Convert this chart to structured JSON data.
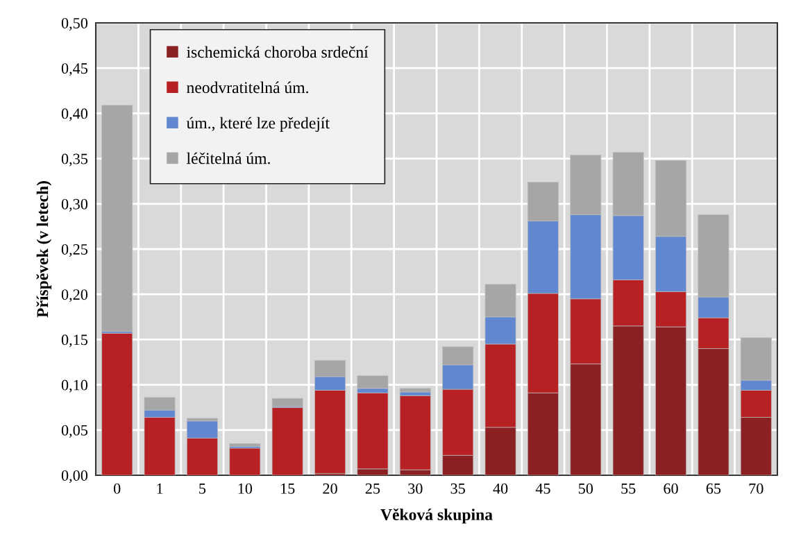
{
  "chart_data": {
    "type": "bar",
    "stacked": true,
    "xlabel": "Věková skupina",
    "ylabel": "Příspěvek (v letech)",
    "categories": [
      "0",
      "1",
      "5",
      "10",
      "15",
      "20",
      "25",
      "30",
      "35",
      "40",
      "45",
      "50",
      "55",
      "60",
      "65",
      "70"
    ],
    "series": [
      {
        "name": "ischemická choroba srdeční",
        "color": "#8b2023",
        "values": [
          0,
          0,
          0,
          0,
          0,
          0.002,
          0.007,
          0.006,
          0.022,
          0.053,
          0.091,
          0.123,
          0.165,
          0.164,
          0.14,
          0.064
        ]
      },
      {
        "name": "neodvratitelná úm.",
        "color": "#b82124",
        "values": [
          0.157,
          0.064,
          0.041,
          0.03,
          0.075,
          0.092,
          0.084,
          0.082,
          0.073,
          0.092,
          0.11,
          0.072,
          0.051,
          0.039,
          0.034,
          0.03
        ]
      },
      {
        "name": "úm., které lze předejít",
        "color": "#6087cf",
        "values": [
          0.002,
          0.008,
          0.019,
          0.002,
          0.001,
          0.015,
          0.005,
          0.004,
          0.027,
          0.03,
          0.08,
          0.093,
          0.071,
          0.061,
          0.023,
          0.011
        ]
      },
      {
        "name": "léčitelná úm.",
        "color": "#a6a6a6",
        "values": [
          0.25,
          0.014,
          0.003,
          0.003,
          0.009,
          0.018,
          0.014,
          0.004,
          0.02,
          0.036,
          0.043,
          0.066,
          0.07,
          0.084,
          0.091,
          0.047
        ]
      }
    ],
    "ylim": [
      0,
      0.5
    ],
    "yticks": [
      {
        "value": 0,
        "label": "0,00"
      },
      {
        "value": 0.05,
        "label": "0,05"
      },
      {
        "value": 0.1,
        "label": "0,10"
      },
      {
        "value": 0.15,
        "label": "0,15"
      },
      {
        "value": 0.2,
        "label": "0,20"
      },
      {
        "value": 0.25,
        "label": "0,25"
      },
      {
        "value": 0.3,
        "label": "0,30"
      },
      {
        "value": 0.35,
        "label": "0,35"
      },
      {
        "value": 0.4,
        "label": "0,40"
      },
      {
        "value": 0.45,
        "label": "0,45"
      },
      {
        "value": 0.5,
        "label": "0,50"
      }
    ],
    "grid": true,
    "legend": "top left"
  }
}
